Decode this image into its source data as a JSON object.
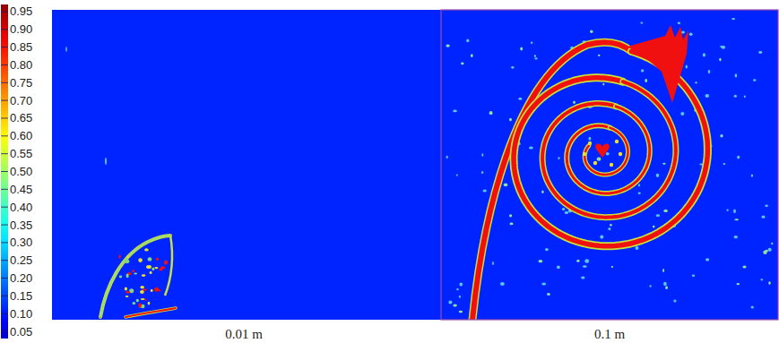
{
  "chart_data": {
    "type": "contour",
    "colorbar": {
      "range": [
        0.03,
        0.97
      ],
      "ticks": [
        0.05,
        {
          "value": 0.1,
          "label": "0.10"
        },
        0.15,
        {
          "value": 0.2,
          "label": "0.20"
        },
        0.25,
        {
          "value": 0.3,
          "label": "0.30"
        },
        0.35,
        {
          "value": 0.4,
          "label": "0.40"
        },
        0.45,
        {
          "value": 0.5,
          "label": "0.50"
        },
        0.55,
        {
          "value": 0.6,
          "label": "0.60"
        },
        0.65,
        {
          "value": 0.7,
          "label": "0.70"
        },
        0.75,
        {
          "value": 0.8,
          "label": "0.80"
        },
        0.85,
        {
          "value": 0.9,
          "label": "0.90"
        },
        0.95
      ]
    },
    "panels": [
      {
        "label": "0.01 m"
      },
      {
        "label": "0.1 m"
      }
    ]
  }
}
